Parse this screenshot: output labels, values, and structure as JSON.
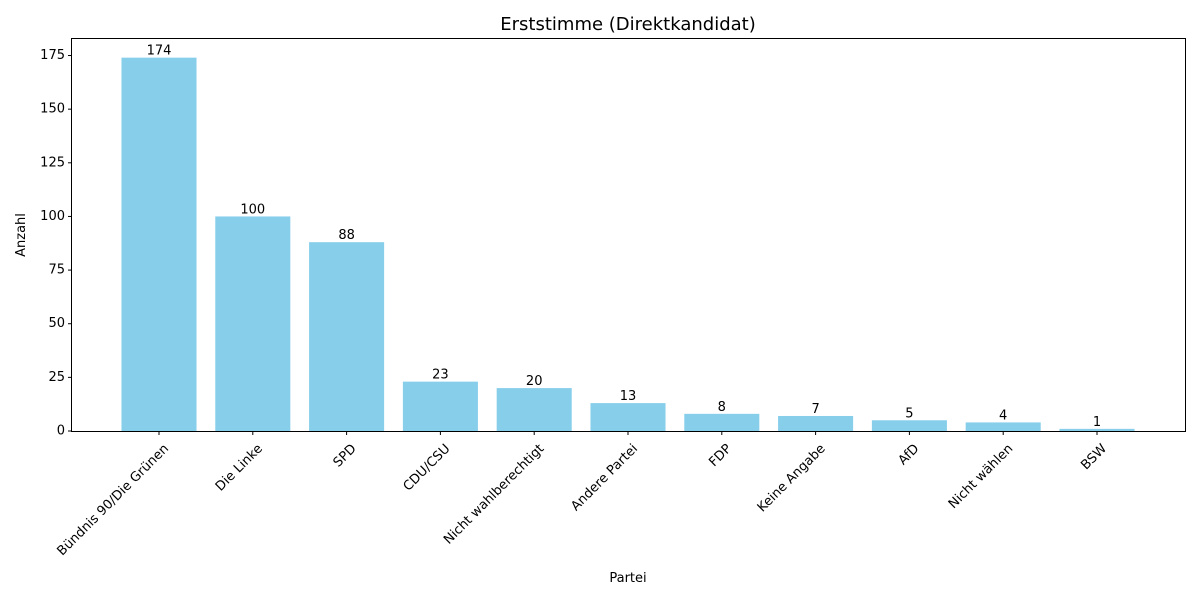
{
  "chart_data": {
    "type": "bar",
    "title": "Erststimme (Direktkandidat)",
    "xlabel": "Partei",
    "ylabel": "Anzahl",
    "categories": [
      "Bündnis 90/Die Grünen",
      "Die Linke",
      "SPD",
      "CDU/CSU",
      "Nicht wahlberechtigt",
      "Andere Partei",
      "FDP",
      "Keine Angabe",
      "AfD",
      "Nicht wählen",
      "BSW"
    ],
    "values": [
      174,
      100,
      88,
      23,
      20,
      13,
      8,
      7,
      5,
      4,
      1
    ],
    "yticks": [
      0,
      25,
      50,
      75,
      100,
      125,
      150,
      175
    ],
    "ylim": [
      0,
      182.7
    ],
    "bar_color": "#87CEEB",
    "grid": false,
    "legend": "none"
  }
}
